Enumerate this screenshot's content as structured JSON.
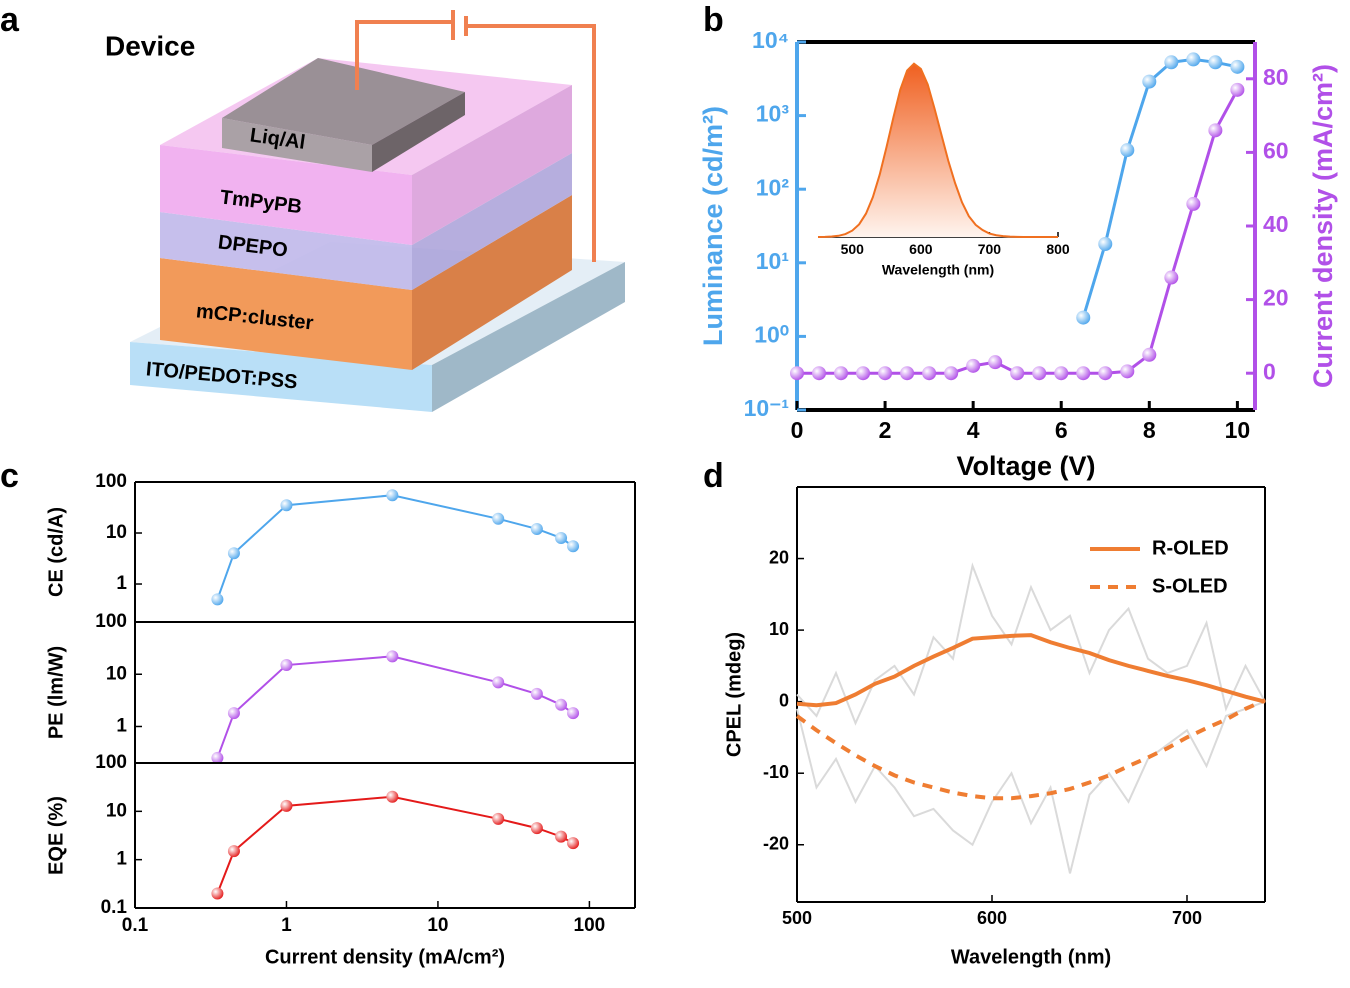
{
  "panel_labels": [
    "a",
    "b",
    "c",
    "d"
  ],
  "diagram": {
    "title": "Device",
    "layers": [
      "Liq/Al",
      "TmPyPB",
      "DPEPO",
      "mCP:cluster",
      "ITO/PEDOT:PSS"
    ]
  },
  "chart_data": [
    {
      "type": "line",
      "xlabel": "Voltage (V)",
      "ylabel": "Luminance (cd/m²)",
      "y2label": "Current density (mA/cm²)",
      "xlim": [
        0,
        10.4
      ],
      "xticks": [
        0,
        2,
        4,
        6,
        8,
        10
      ],
      "yscale": "log",
      "ylim": [
        0.1,
        10000
      ],
      "yticks": [
        {
          "value": 0.1,
          "label": "10⁻¹"
        },
        {
          "value": 1,
          "label": "10⁰"
        },
        {
          "value": 10,
          "label": "10¹"
        },
        {
          "value": 100,
          "label": "10²"
        },
        {
          "value": 1000,
          "label": "10³"
        },
        {
          "value": 10000,
          "label": "10⁴"
        }
      ],
      "y2lim": [
        -10,
        90
      ],
      "y2ticks": [
        0,
        20,
        40,
        60,
        80
      ],
      "series": [
        {
          "color": "#4ea6ec",
          "marker": "circle",
          "x": [
            6.5,
            7,
            7.5,
            8,
            8.5,
            9,
            9.5,
            10
          ],
          "values": [
            1.8,
            18,
            340,
            2900,
            5300,
            5800,
            5300,
            4600
          ]
        },
        {
          "color": "#b150e8",
          "marker": "circle",
          "axis": "y2",
          "x": [
            0,
            0.5,
            1,
            1.5,
            2,
            2.5,
            3,
            3.5,
            4,
            4.5,
            5,
            5.5,
            6,
            6.5,
            7,
            7.5,
            8,
            8.5,
            9,
            9.5,
            10
          ],
          "values": [
            0,
            0,
            0,
            0,
            0,
            0,
            0,
            0,
            2,
            3,
            0,
            0,
            0,
            0,
            0,
            0.5,
            5,
            26,
            46,
            66,
            77
          ]
        }
      ]
    },
    {
      "type": "area",
      "xlabel": "Wavelength (nm)",
      "xlim": [
        450,
        800
      ],
      "xticks": [
        500,
        600,
        700,
        800
      ],
      "ylim": [
        0,
        1.05
      ],
      "series": [
        {
          "color": "#f07020",
          "x": [
            450,
            460,
            470,
            480,
            490,
            500,
            510,
            520,
            530,
            540,
            550,
            560,
            570,
            580,
            590,
            600,
            610,
            620,
            630,
            640,
            650,
            660,
            670,
            680,
            690,
            700,
            710,
            720,
            730,
            740,
            750,
            760,
            770,
            780,
            790,
            800
          ],
          "values": [
            0,
            0.001,
            0.003,
            0.007,
            0.017,
            0.037,
            0.073,
            0.135,
            0.23,
            0.36,
            0.52,
            0.69,
            0.85,
            0.96,
            1,
            0.97,
            0.88,
            0.74,
            0.59,
            0.44,
            0.31,
            0.2,
            0.12,
            0.07,
            0.04,
            0.02,
            0.01,
            0.005,
            0.002,
            0.001,
            0,
            0,
            0,
            0,
            0,
            0
          ]
        }
      ]
    },
    {
      "type": "line",
      "ylabel": "CE (cd/A)",
      "xscale": "log",
      "xlim": [
        0.1,
        200
      ],
      "yscale": "log",
      "ylim": [
        0.18,
        100
      ],
      "yticks": [
        1,
        10,
        100
      ],
      "series": [
        {
          "color": "#4ea6ec",
          "marker": "circle",
          "x": [
            0.35,
            0.45,
            1,
            5,
            25,
            45,
            65,
            78
          ],
          "values": [
            0.5,
            4,
            35,
            55,
            19,
            12,
            8,
            5.5
          ]
        }
      ]
    },
    {
      "type": "line",
      "ylabel": "PE (lm/W)",
      "xscale": "log",
      "xlim": [
        0.1,
        200
      ],
      "yscale": "log",
      "ylim": [
        0.2,
        100
      ],
      "yticks": [
        1,
        10,
        100
      ],
      "series": [
        {
          "color": "#b150e8",
          "marker": "circle",
          "x": [
            0.35,
            0.45,
            1,
            5,
            25,
            45,
            65,
            78
          ],
          "values": [
            0.25,
            1.8,
            15,
            22,
            7,
            4.2,
            2.6,
            1.8
          ]
        }
      ]
    },
    {
      "type": "line",
      "ylabel": "EQE (%)",
      "xlabel": "Current density (mA/cm²)",
      "xscale": "log",
      "xlim": [
        0.1,
        200
      ],
      "xticks": [
        0.1,
        1,
        10,
        100
      ],
      "yscale": "log",
      "ylim": [
        0.1,
        100
      ],
      "yticks": [
        0.1,
        1,
        10,
        100
      ],
      "series": [
        {
          "color": "#e41a1a",
          "marker": "circle",
          "x": [
            0.35,
            0.45,
            1,
            5,
            25,
            45,
            65,
            78
          ],
          "values": [
            0.2,
            1.5,
            13,
            20,
            7,
            4.5,
            3,
            2.2
          ]
        }
      ]
    },
    {
      "type": "line",
      "xlabel": "Wavelength (nm)",
      "ylabel": "CPEL (mdeg)",
      "xlim": [
        500,
        740
      ],
      "xticks": [
        500,
        600,
        700
      ],
      "ylim": [
        -28,
        30
      ],
      "yticks": [
        -20,
        -10,
        0,
        10,
        20
      ],
      "legend": "top-right",
      "x": [
        500,
        510,
        520,
        530,
        540,
        550,
        560,
        570,
        580,
        590,
        600,
        610,
        620,
        630,
        640,
        650,
        660,
        670,
        680,
        690,
        700,
        710,
        720,
        730,
        740
      ],
      "series": [
        {
          "color": "#dadada",
          "values": [
            1,
            -2,
            4,
            -3,
            3,
            5,
            1,
            9,
            6,
            19,
            12,
            8,
            16,
            10,
            12,
            4,
            10,
            13,
            6,
            4,
            5,
            11,
            -1,
            5,
            0
          ]
        },
        {
          "color": "#dadada",
          "values": [
            -1,
            -12,
            -8,
            -14,
            -9,
            -12,
            -16,
            -15,
            -18,
            -20,
            -14,
            -10,
            -17,
            -12,
            -24,
            -13,
            -10,
            -14,
            -8,
            -6,
            -4,
            -9,
            -2,
            -1,
            0
          ]
        },
        {
          "name": "R-OLED",
          "color": "#ef7d32",
          "values": [
            -0.3,
            -0.5,
            -0.2,
            1,
            2.5,
            3.5,
            5,
            6.3,
            7.5,
            8.8,
            9,
            9.2,
            9.3,
            8.3,
            7.5,
            6.8,
            5.8,
            5,
            4.3,
            3.6,
            3,
            2.3,
            1.5,
            0.7,
            0
          ]
        },
        {
          "name": "S-OLED",
          "color": "#ef7d32",
          "linestyle": "dashed",
          "values": [
            -2,
            -4,
            -5.8,
            -7.5,
            -9,
            -10.3,
            -11.3,
            -12,
            -12.7,
            -13.2,
            -13.5,
            -13.5,
            -13.2,
            -12.8,
            -12.2,
            -11.3,
            -10.3,
            -9,
            -7.8,
            -6.5,
            -5,
            -3.7,
            -2.5,
            -1,
            0.2
          ]
        }
      ]
    }
  ]
}
